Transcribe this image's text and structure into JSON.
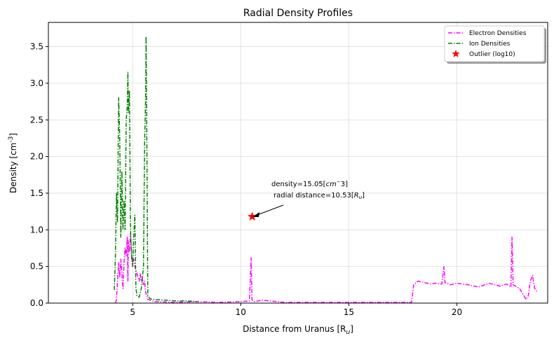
{
  "chart_data": {
    "type": "line",
    "title": "Radial Density Profiles",
    "xlabel": "Distance from Uranus [R",
    "xlabel_sub": "u",
    "xlabel_end": "]",
    "ylabel": "Density [cm",
    "ylabel_sup": "-3",
    "ylabel_end": "]",
    "xlim": [
      1.1,
      24.2
    ],
    "ylim": [
      0.0,
      3.83
    ],
    "xticks": [
      5,
      10,
      15,
      20
    ],
    "yticks": [
      0.0,
      0.5,
      1.0,
      1.5,
      2.0,
      2.5,
      3.0,
      3.5
    ],
    "grid": true,
    "legend_position": "upper right",
    "series": [
      {
        "name": "Electron Densities",
        "color": "#ff00ff",
        "style": "dashdot",
        "points": [
          [
            4.2,
            0.0
          ],
          [
            4.25,
            0.05
          ],
          [
            4.3,
            0.3
          ],
          [
            4.35,
            0.55
          ],
          [
            4.4,
            0.35
          ],
          [
            4.45,
            0.6
          ],
          [
            4.5,
            0.4
          ],
          [
            4.55,
            0.2
          ],
          [
            4.6,
            0.55
          ],
          [
            4.65,
            0.75
          ],
          [
            4.7,
            0.65
          ],
          [
            4.75,
            0.9
          ],
          [
            4.78,
            0.3
          ],
          [
            4.8,
            0.85
          ],
          [
            4.85,
            0.7
          ],
          [
            4.9,
            0.95
          ],
          [
            4.95,
            0.65
          ],
          [
            5.0,
            0.55
          ],
          [
            5.05,
            0.6
          ],
          [
            5.1,
            0.5
          ],
          [
            5.15,
            0.45
          ],
          [
            5.2,
            0.4
          ],
          [
            5.25,
            0.35
          ],
          [
            5.3,
            0.3
          ],
          [
            5.35,
            0.4
          ],
          [
            5.4,
            0.3
          ],
          [
            5.45,
            0.35
          ],
          [
            5.5,
            0.25
          ],
          [
            5.55,
            0.3
          ],
          [
            5.6,
            0.15
          ],
          [
            5.7,
            0.05
          ],
          [
            6.0,
            0.02
          ],
          [
            7.0,
            0.01
          ],
          [
            8.0,
            0.02
          ],
          [
            9.0,
            0.01
          ],
          [
            10.0,
            0.02
          ],
          [
            10.4,
            0.03
          ],
          [
            10.48,
            0.62
          ],
          [
            10.52,
            0.05
          ],
          [
            10.6,
            0.02
          ],
          [
            11.0,
            0.04
          ],
          [
            12.0,
            0.01
          ],
          [
            14.0,
            0.01
          ],
          [
            16.0,
            0.01
          ],
          [
            17.9,
            0.01
          ],
          [
            18.0,
            0.25
          ],
          [
            18.2,
            0.3
          ],
          [
            18.5,
            0.28
          ],
          [
            18.8,
            0.26
          ],
          [
            19.0,
            0.27
          ],
          [
            19.3,
            0.26
          ],
          [
            19.4,
            0.5
          ],
          [
            19.45,
            0.28
          ],
          [
            19.7,
            0.25
          ],
          [
            20.0,
            0.27
          ],
          [
            20.5,
            0.25
          ],
          [
            21.0,
            0.22
          ],
          [
            21.5,
            0.27
          ],
          [
            22.0,
            0.23
          ],
          [
            22.3,
            0.26
          ],
          [
            22.5,
            0.22
          ],
          [
            22.55,
            0.9
          ],
          [
            22.6,
            0.25
          ],
          [
            22.9,
            0.2
          ],
          [
            23.2,
            0.05
          ],
          [
            23.3,
            0.1
          ],
          [
            23.4,
            0.3
          ],
          [
            23.5,
            0.38
          ],
          [
            23.6,
            0.2
          ],
          [
            23.7,
            0.16
          ]
        ]
      },
      {
        "name": "Ion Densities",
        "color": "#008000",
        "style": "dashdot",
        "points": [
          [
            4.15,
            0.18
          ],
          [
            4.2,
            0.6
          ],
          [
            4.25,
            1.5
          ],
          [
            4.3,
            1.1
          ],
          [
            4.35,
            2.8
          ],
          [
            4.4,
            2.3
          ],
          [
            4.45,
            0.9
          ],
          [
            4.5,
            1.8
          ],
          [
            4.55,
            1.0
          ],
          [
            4.6,
            1.4
          ],
          [
            4.65,
            1.0
          ],
          [
            4.7,
            2.5
          ],
          [
            4.75,
            2.7
          ],
          [
            4.78,
            3.15
          ],
          [
            4.8,
            2.6
          ],
          [
            4.85,
            2.9
          ],
          [
            4.9,
            1.0
          ],
          [
            4.95,
            0.6
          ],
          [
            5.0,
            0.5
          ],
          [
            5.05,
            0.9
          ],
          [
            5.1,
            1.2
          ],
          [
            5.15,
            0.2
          ],
          [
            5.2,
            0.1
          ],
          [
            5.3,
            0.08
          ],
          [
            5.4,
            0.2
          ],
          [
            5.5,
            0.5
          ],
          [
            5.55,
            2.2
          ],
          [
            5.6,
            2.8
          ],
          [
            5.62,
            3.64
          ],
          [
            5.65,
            2.5
          ],
          [
            5.7,
            0.1
          ],
          [
            5.8,
            0.06
          ],
          [
            6.0,
            0.05
          ],
          [
            6.5,
            0.04
          ],
          [
            7.0,
            0.03
          ],
          [
            7.5,
            0.03
          ],
          [
            8.0,
            0.02
          ]
        ]
      }
    ],
    "outlier": {
      "name": "Outlier (log10)",
      "x": 10.53,
      "y": 1.18,
      "color": "#ff0000"
    },
    "annotation": {
      "line1": "density=15.05[",
      "line1_math": "cm",
      "line1_sup": "−",
      "line1_end": "3]",
      "line2": "radial distance=10.53[",
      "line2_math": "R",
      "line2_sub": "u",
      "line2_end": "]"
    }
  }
}
